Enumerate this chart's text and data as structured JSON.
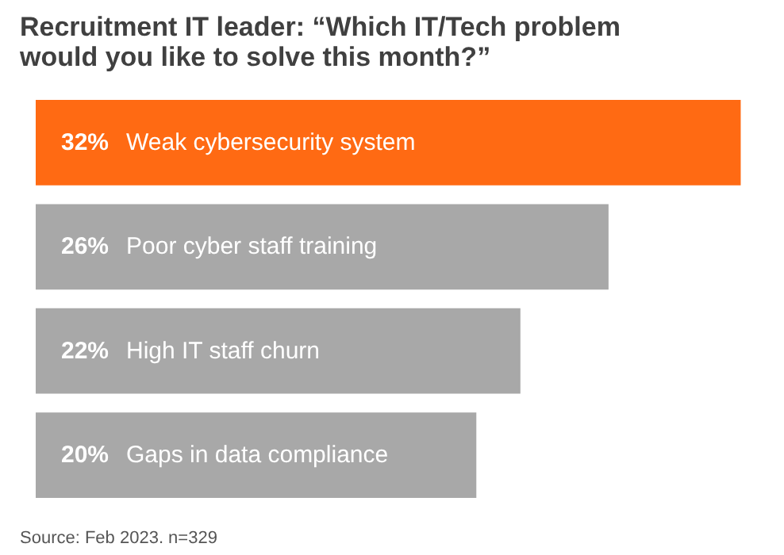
{
  "chart_data": {
    "type": "bar",
    "orientation": "horizontal",
    "title": "Recruitment IT leader: “Which IT/Tech problem\nwould you like to solve this month?”",
    "categories": [
      "Weak cybersecurity system",
      "Poor cyber staff training",
      "High IT staff churn",
      "Gaps in data compliance"
    ],
    "values": [
      32,
      26,
      22,
      20
    ],
    "value_labels": [
      "32%",
      "26%",
      "22%",
      "20%"
    ],
    "colors": [
      "#ff6a13",
      "#a8a8a8",
      "#a8a8a8",
      "#a8a8a8"
    ],
    "annotations": [
      "Source: Feb 2023.   n=329"
    ],
    "grid": false
  }
}
